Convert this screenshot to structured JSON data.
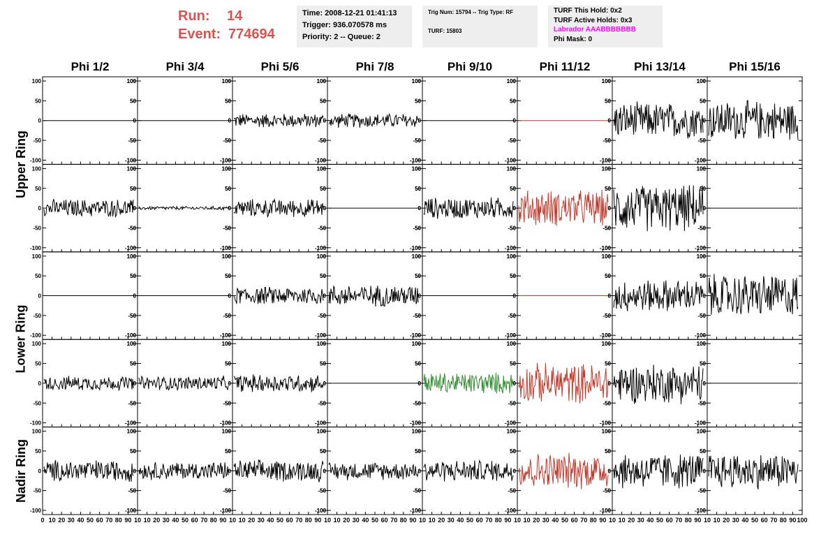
{
  "header": {
    "run_label": "Run:",
    "run_value": "14",
    "event_label": "Event:",
    "event_value": "774694",
    "time": "Time: 2008-12-21 01:41:13",
    "trigger": "Trigger: 936.070578 ms",
    "priority": "Priority: 2 -- Queue: 2",
    "trig_num": "Trig Num: 15794 -- Trig Type: RF",
    "turf": "TURF: 15803",
    "turf_this_hold": "TURF This Hold: 0x2",
    "turf_active_holds": "TURF Active Holds: 0x3",
    "labrador": "Labrador AAABBBBBBB",
    "phi_mask": "Phi Mask: 0"
  },
  "columns": [
    "Phi 1/2",
    "Phi 3/4",
    "Phi 5/6",
    "Phi 7/8",
    "Phi 9/10",
    "Phi 11/12",
    "Phi 13/14",
    "Phi 15/16"
  ],
  "rows": [
    {
      "label": "Upper Ring"
    },
    {
      "label": "Lower Ring"
    },
    {
      "label": "Nadir Ring"
    }
  ],
  "colors": {
    "header_red": "#d9534f",
    "magenta": "#ff00ff",
    "trace_black": "#000000",
    "trace_red": "#c0392b",
    "trace_green": "#2e8b2e"
  },
  "chart_data": {
    "type": "line",
    "xlim": [
      0,
      100
    ],
    "ylim": [
      -100,
      100
    ],
    "y_ticks": [
      "100",
      "50",
      "0",
      "-50",
      "-100"
    ],
    "x_tick_labels": [
      "0",
      "10",
      "20",
      "30",
      "40",
      "50",
      "60",
      "70",
      "80",
      "90",
      "10",
      "10",
      "20",
      "30",
      "40",
      "50",
      "60",
      "70",
      "80",
      "90",
      "10",
      "10",
      "20",
      "30",
      "40",
      "50",
      "60",
      "70",
      "80",
      "90",
      "10",
      "10",
      "20",
      "30",
      "40",
      "50",
      "60",
      "70",
      "80",
      "90",
      "10",
      "10",
      "20",
      "30",
      "40",
      "50",
      "60",
      "70",
      "80",
      "90",
      "10",
      "10",
      "20",
      "30",
      "40",
      "50",
      "60",
      "70",
      "80",
      "90",
      "10",
      "10",
      "20",
      "30",
      "40",
      "50",
      "60",
      "70",
      "80",
      "90",
      "10",
      "10",
      "20",
      "30",
      "40",
      "50",
      "60",
      "70",
      "80",
      "90",
      "100"
    ],
    "panels": [
      [
        0,
        "flat",
        "black"
      ],
      [
        0,
        "flat",
        "black"
      ],
      [
        20,
        "noise",
        "black"
      ],
      [
        20,
        "noise",
        "black"
      ],
      [
        0,
        "flat",
        "black"
      ],
      [
        0,
        "flat",
        "red"
      ],
      [
        50,
        "noise",
        "black"
      ],
      [
        55,
        "noise",
        "black"
      ],
      [
        25,
        "noise",
        "black"
      ],
      [
        5,
        "noise",
        "black"
      ],
      [
        25,
        "noise",
        "black"
      ],
      [
        0,
        "flat",
        "black"
      ],
      [
        30,
        "noise",
        "black"
      ],
      [
        50,
        "noise",
        "red"
      ],
      [
        65,
        "noise",
        "black"
      ],
      [
        0,
        "flat",
        "black"
      ],
      [
        0,
        "flat",
        "black"
      ],
      [
        0,
        "flat",
        "black"
      ],
      [
        25,
        "noise",
        "black"
      ],
      [
        30,
        "noise",
        "black"
      ],
      [
        0,
        "flat",
        "black"
      ],
      [
        0,
        "flat",
        "red"
      ],
      [
        45,
        "noise",
        "black"
      ],
      [
        60,
        "noise",
        "black"
      ],
      [
        20,
        "noise",
        "black"
      ],
      [
        20,
        "noise",
        "black"
      ],
      [
        25,
        "noise",
        "black"
      ],
      [
        0,
        "flat",
        "black"
      ],
      [
        30,
        "noise",
        "green"
      ],
      [
        55,
        "noise",
        "red"
      ],
      [
        55,
        "noise",
        "black"
      ],
      [
        0,
        "flat",
        "black"
      ],
      [
        30,
        "noise",
        "black"
      ],
      [
        25,
        "noise",
        "black"
      ],
      [
        30,
        "noise",
        "black"
      ],
      [
        25,
        "noise",
        "black"
      ],
      [
        30,
        "noise",
        "black"
      ],
      [
        50,
        "noise",
        "red"
      ],
      [
        50,
        "noise",
        "black"
      ],
      [
        50,
        "noise",
        "black"
      ]
    ]
  }
}
